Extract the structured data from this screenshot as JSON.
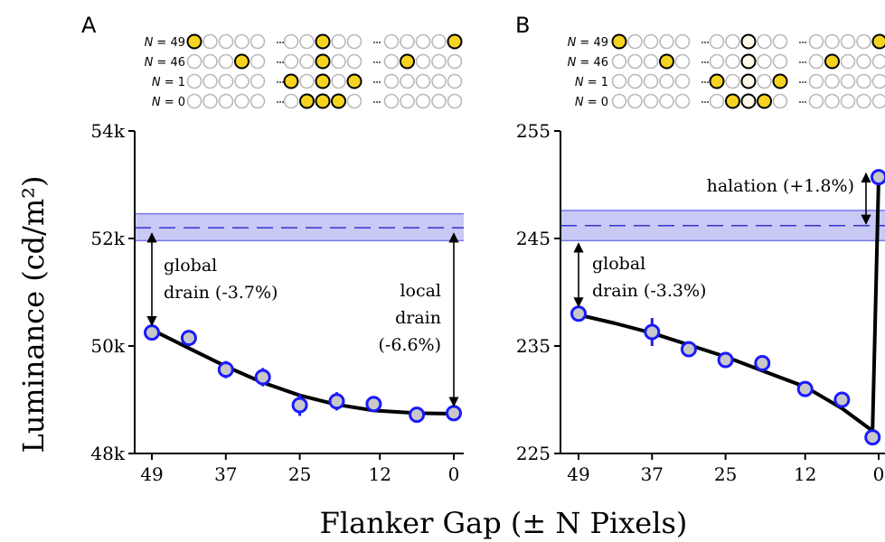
{
  "figure": {
    "xlabel": "Flanker Gap (± N Pixels)",
    "ylabel": "Luminance (cd/m²)"
  },
  "colors": {
    "marker_edge": "#1a1aff",
    "marker_fill": "#c8c8c8",
    "band_fill": "#c9c9f6",
    "band_line": "#7777ee",
    "ref_dash": "#3333cc",
    "fit_line": "#000000",
    "disc_on": "#f5d320",
    "disc_off_edge": "#b9b9b9",
    "disc_ring_fill": "#fff8e8"
  },
  "chart_data": [
    {
      "type": "scatter",
      "panel": "A",
      "x_tick_labels": [
        "49",
        "37",
        "25",
        "12",
        "0"
      ],
      "x_ticks": [
        49,
        37,
        25,
        12,
        0
      ],
      "y_tick_labels": [
        "54k",
        "52k",
        "50k",
        "48k"
      ],
      "y_ticks": [
        54000,
        52000,
        50000,
        48000
      ],
      "xlim": [
        49,
        0
      ],
      "ylim": [
        48000,
        54000
      ],
      "series": [
        {
          "x": [
            49,
            43,
            37,
            31,
            25,
            19,
            13,
            6,
            0
          ],
          "y": [
            50250,
            50150,
            49560,
            49420,
            48900,
            48970,
            48920,
            48720,
            48750
          ],
          "err": [
            70,
            60,
            160,
            170,
            200,
            170,
            90,
            110,
            140
          ]
        }
      ],
      "fit_curve": {
        "x": [
          49,
          43,
          37,
          31,
          25,
          19,
          13,
          6,
          0
        ],
        "y": [
          50300,
          49960,
          49620,
          49320,
          49080,
          48910,
          48800,
          48750,
          48740
        ]
      },
      "reference": {
        "value": 52200,
        "band": [
          51960,
          52460
        ]
      },
      "annotations": [
        {
          "text_lines": [
            "global",
            "drain (-3.7%)"
          ]
        },
        {
          "text_lines": [
            "local",
            "drain",
            "(-6.6%)"
          ]
        }
      ],
      "schematic_rows": [
        {
          "label": "N = 49",
          "left": [
            0
          ],
          "mid_filled": [
            2
          ],
          "mid_ring": [],
          "right": [
            4
          ]
        },
        {
          "label": "N = 46",
          "left": [
            3
          ],
          "mid_filled": [
            2
          ],
          "mid_ring": [],
          "right": [
            1
          ]
        },
        {
          "label": "N = 1",
          "left": [],
          "mid_filled": [
            0,
            2,
            4
          ],
          "mid_ring": [],
          "right": []
        },
        {
          "label": "N = 0",
          "left": [],
          "mid_filled": [
            1,
            2,
            3
          ],
          "mid_ring": [],
          "right": []
        }
      ]
    },
    {
      "type": "scatter",
      "panel": "B",
      "x_tick_labels": [
        "49",
        "37",
        "25",
        "12",
        "0"
      ],
      "x_ticks": [
        49,
        37,
        25,
        12,
        0
      ],
      "y_tick_labels": [
        "255",
        "245",
        "235",
        "225"
      ],
      "y_ticks": [
        255,
        245,
        235,
        225
      ],
      "xlim": [
        49,
        0
      ],
      "ylim": [
        225,
        255
      ],
      "series": [
        {
          "x": [
            49,
            37,
            31,
            25,
            19,
            12,
            6,
            1,
            0
          ],
          "y": [
            238,
            236.3,
            234.7,
            233.7,
            233.4,
            231,
            230,
            226.5,
            250.7
          ],
          "err": [
            0.4,
            1.3,
            0.4,
            0.4,
            0.3,
            0.4,
            0.3,
            0.3,
            0.4
          ]
        }
      ],
      "fit_curve": {
        "x": [
          49,
          43,
          37,
          31,
          25,
          19,
          12,
          6,
          1,
          0
        ],
        "y": [
          237.9,
          237.1,
          236.2,
          235.1,
          234,
          232.7,
          231.2,
          229.2,
          227.1,
          250.7
        ]
      },
      "reference": {
        "value": 246.2,
        "band": [
          244.8,
          247.6
        ]
      },
      "annotations": [
        {
          "text_lines": [
            "halation (+1.8%)"
          ]
        },
        {
          "text_lines": [
            "global",
            "drain (-3.3%)"
          ]
        }
      ],
      "schematic_rows": [
        {
          "label": "N = 49",
          "left": [
            0
          ],
          "mid_filled": [],
          "mid_ring": [
            2
          ],
          "right": [
            4
          ]
        },
        {
          "label": "N = 46",
          "left": [
            3
          ],
          "mid_filled": [],
          "mid_ring": [
            2
          ],
          "right": [
            1
          ]
        },
        {
          "label": "N = 1",
          "left": [],
          "mid_filled": [
            0,
            4
          ],
          "mid_ring": [
            2
          ],
          "right": []
        },
        {
          "label": "N = 0",
          "left": [],
          "mid_filled": [
            1,
            3
          ],
          "mid_ring": [
            2
          ],
          "right": []
        }
      ]
    }
  ]
}
